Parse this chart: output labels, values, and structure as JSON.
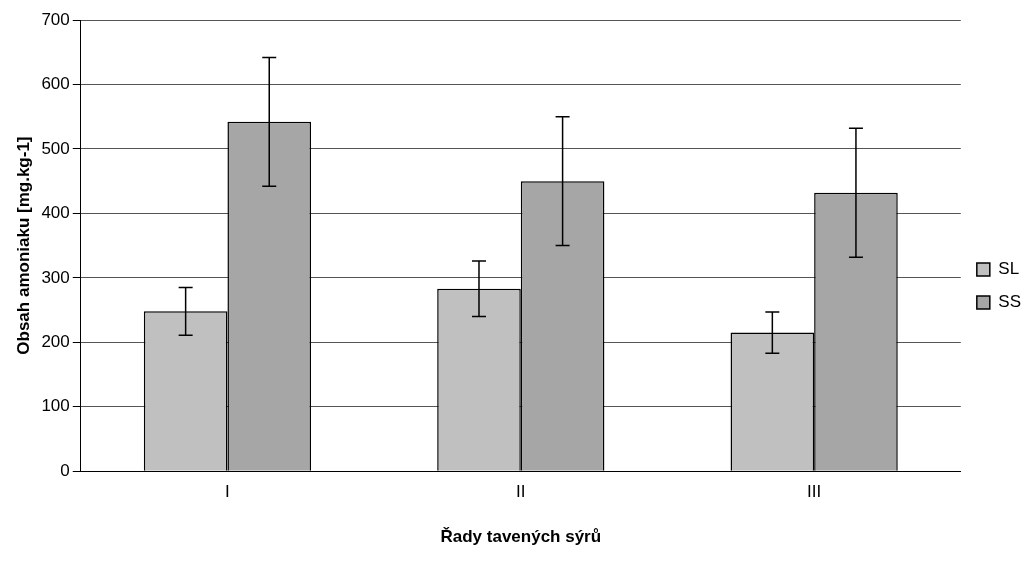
{
  "chart_data": {
    "type": "bar",
    "xlabel": "Řady tavených sýrů",
    "ylabel": "Obsah amoniaku [mg.kg-1]",
    "categories": [
      "I",
      "II",
      "III"
    ],
    "series": [
      {
        "name": "SL",
        "color": "#c0c0c0",
        "values": [
          248,
          283,
          215
        ],
        "errors": [
          37,
          43,
          32
        ]
      },
      {
        "name": "SS",
        "color": "#a6a6a6",
        "values": [
          542,
          450,
          432
        ],
        "errors": [
          100,
          100,
          100
        ]
      }
    ],
    "ylim": [
      0,
      700
    ],
    "yticks": [
      0,
      100,
      200,
      300,
      400,
      500,
      600,
      700
    ],
    "grid": "y",
    "legend": "right"
  }
}
